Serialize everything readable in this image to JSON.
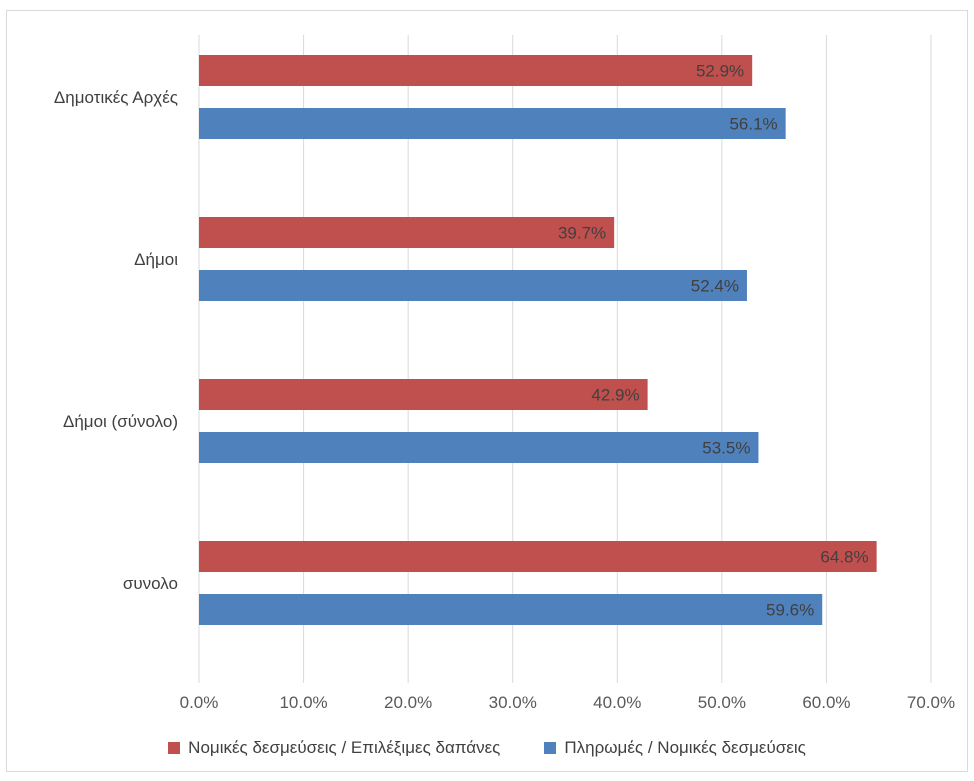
{
  "chart_data": {
    "type": "bar",
    "orientation": "horizontal",
    "categories": [
      "Δημοτικές Αρχές",
      "Δήμοι",
      "Δήμοι (σύνολο)",
      "συνολο"
    ],
    "series": [
      {
        "name": "Νομικές δεσμεύσεις / Επιλέξιμες δαπάνες",
        "color": "#c0504d",
        "values": [
          52.9,
          39.7,
          42.9,
          64.8
        ],
        "labels": [
          "52.9%",
          "39.7%",
          "42.9%",
          "64.8%"
        ]
      },
      {
        "name": "Πληρωμές / Νομικές δεσμεύσεις",
        "color": "#4f81bd",
        "values": [
          56.1,
          52.4,
          53.5,
          59.6
        ],
        "labels": [
          "56.1%",
          "52.4%",
          "53.5%",
          "59.6%"
        ]
      }
    ],
    "xlim": [
      0,
      70
    ],
    "xticks": [
      "0.0%",
      "10.0%",
      "20.0%",
      "30.0%",
      "40.0%",
      "50.0%",
      "60.0%",
      "70.0%"
    ],
    "grid": true,
    "legend_position": "bottom"
  }
}
